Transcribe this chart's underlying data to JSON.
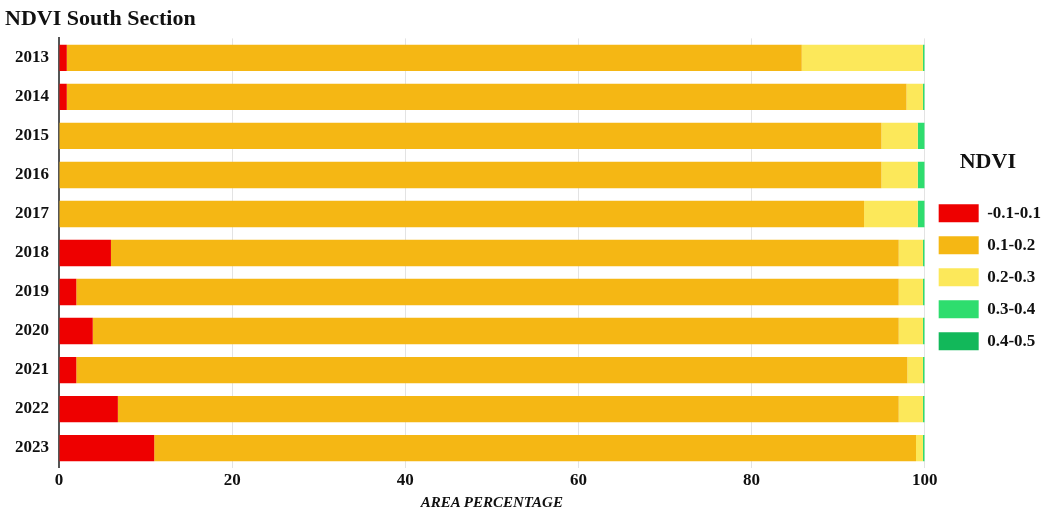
{
  "chart_data": {
    "type": "bar",
    "orientation": "horizontal",
    "stacked": true,
    "title": "NDVI South Section",
    "xlabel": "AREA PERCENTAGE",
    "legend_title": "NDVI",
    "legend": "right",
    "grid": "x",
    "categories": [
      "2013",
      "2014",
      "2015",
      "2016",
      "2017",
      "2018",
      "2019",
      "2020",
      "2021",
      "2022",
      "2023"
    ],
    "xlim": [
      0,
      100
    ],
    "xticks": [
      0,
      20,
      40,
      60,
      80,
      100
    ],
    "series": [
      {
        "name": "-0.1-0.1",
        "color": "#ee0000",
        "values": [
          0.9,
          0.9,
          0,
          0,
          0,
          6,
          2,
          3.9,
          2,
          6.8,
          11
        ]
      },
      {
        "name": "0.1-0.2",
        "color": "#f5b714",
        "values": [
          84.9,
          97.0,
          95,
          95,
          93,
          91,
          95,
          93.1,
          96,
          90.2,
          88
        ]
      },
      {
        "name": "0.2-0.3",
        "color": "#fce85a",
        "values": [
          14.0,
          1.9,
          4.2,
          4.2,
          6.2,
          2.8,
          2.8,
          2.8,
          1.8,
          2.8,
          0.8
        ]
      },
      {
        "name": "0.3-0.4",
        "color": "#2edd6e",
        "values": [
          0.2,
          0.2,
          0.8,
          0.8,
          0.8,
          0.2,
          0.2,
          0.2,
          0.2,
          0.2,
          0.2
        ]
      },
      {
        "name": "0.4-0.5",
        "color": "#12b85a",
        "values": [
          0,
          0,
          0,
          0,
          0,
          0,
          0,
          0,
          0,
          0,
          0
        ]
      }
    ]
  }
}
